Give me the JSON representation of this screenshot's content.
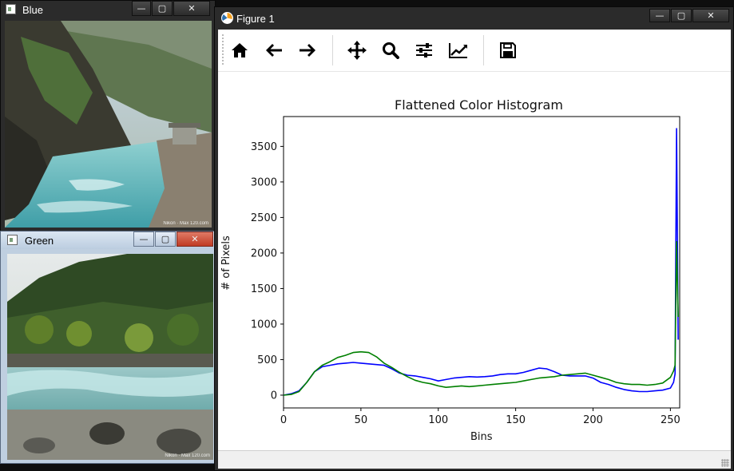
{
  "windows": {
    "blue": {
      "title": "Blue",
      "watermark": "Nikon · Max 120.com"
    },
    "green": {
      "title": "Green",
      "watermark": "Nikon · Max 120.com"
    },
    "figure": {
      "title": "Figure 1"
    }
  },
  "window_controls": {
    "minimize": "—",
    "maximize": "▢",
    "close": "✕"
  },
  "toolbar": {
    "items": [
      {
        "name": "home",
        "icon": "home-icon"
      },
      {
        "name": "back",
        "icon": "arrow-left-icon"
      },
      {
        "name": "forward",
        "icon": "arrow-right-icon"
      },
      {
        "name": "pan",
        "icon": "move-icon"
      },
      {
        "name": "zoom",
        "icon": "magnifier-icon"
      },
      {
        "name": "configure-subplots",
        "icon": "sliders-icon"
      },
      {
        "name": "edit-axis",
        "icon": "line-chart-icon"
      },
      {
        "name": "save",
        "icon": "floppy-disk-icon"
      }
    ]
  },
  "colors": {
    "blue_series": "#0000ff",
    "green_series": "#008000",
    "plot_bg": "#ffffff",
    "figure_bg": "#ffffff"
  },
  "chart_data": {
    "type": "line",
    "title": "Flattened Color Histogram",
    "xlabel": "Bins",
    "ylabel": "# of Pixels",
    "xlim": [
      0,
      256
    ],
    "ylim": [
      -180,
      3920
    ],
    "xticks": [
      0,
      50,
      100,
      150,
      200,
      250
    ],
    "yticks": [
      0,
      500,
      1000,
      1500,
      2000,
      2500,
      3000,
      3500
    ],
    "grid": false,
    "legend": "none",
    "series": [
      {
        "color": "#0000ff",
        "x": [
          0,
          5,
          10,
          15,
          20,
          25,
          30,
          35,
          40,
          45,
          50,
          55,
          60,
          65,
          70,
          75,
          80,
          85,
          90,
          95,
          100,
          105,
          110,
          115,
          120,
          125,
          130,
          135,
          140,
          145,
          150,
          155,
          160,
          165,
          170,
          175,
          180,
          185,
          190,
          195,
          200,
          205,
          210,
          215,
          220,
          225,
          230,
          235,
          240,
          245,
          250,
          252,
          253,
          254,
          255
        ],
        "y": [
          0,
          20,
          60,
          180,
          330,
          400,
          420,
          440,
          450,
          460,
          450,
          440,
          430,
          420,
          370,
          310,
          280,
          270,
          250,
          230,
          200,
          220,
          240,
          250,
          260,
          255,
          260,
          270,
          290,
          300,
          300,
          320,
          350,
          380,
          370,
          330,
          280,
          270,
          270,
          270,
          240,
          180,
          150,
          110,
          80,
          60,
          50,
          50,
          60,
          70,
          100,
          180,
          300,
          3750,
          780
        ]
      },
      {
        "color": "#008000",
        "x": [
          0,
          5,
          10,
          15,
          20,
          25,
          30,
          35,
          40,
          45,
          50,
          55,
          60,
          65,
          70,
          75,
          80,
          85,
          90,
          95,
          100,
          105,
          110,
          115,
          120,
          125,
          130,
          135,
          140,
          145,
          150,
          155,
          160,
          165,
          170,
          175,
          180,
          185,
          190,
          195,
          200,
          205,
          210,
          215,
          220,
          225,
          230,
          235,
          240,
          245,
          250,
          252,
          253,
          254,
          255
        ],
        "y": [
          0,
          10,
          50,
          180,
          330,
          420,
          470,
          530,
          560,
          600,
          610,
          600,
          540,
          450,
          390,
          320,
          260,
          210,
          180,
          160,
          130,
          110,
          120,
          130,
          120,
          130,
          140,
          150,
          160,
          170,
          180,
          200,
          220,
          240,
          250,
          260,
          280,
          290,
          300,
          310,
          280,
          250,
          220,
          180,
          160,
          150,
          150,
          140,
          150,
          170,
          250,
          340,
          420,
          2160,
          1100
        ]
      }
    ]
  }
}
